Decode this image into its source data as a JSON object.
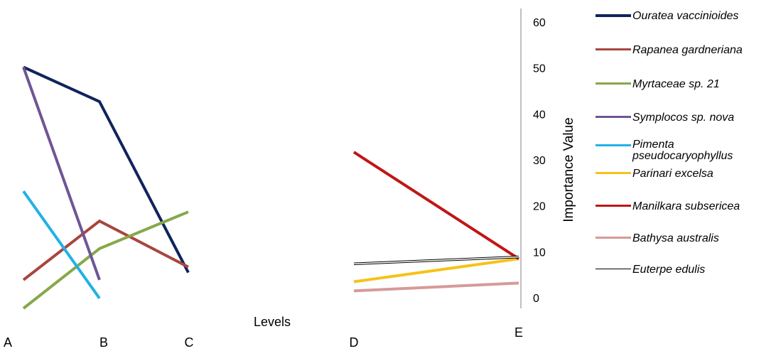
{
  "chart_data": {
    "type": "line",
    "title": "",
    "xlabel": "Levels",
    "ylabel": "Importance  Value",
    "ylim": [
      0,
      60
    ],
    "yticks": [
      0,
      10,
      20,
      30,
      40,
      50,
      60
    ],
    "categories": [
      "A",
      "B",
      "C",
      "D",
      "E"
    ],
    "series": [
      {
        "name": "Ouratea vaccinioides",
        "color": "#10245c",
        "points": [
          [
            "A",
            52.5
          ],
          [
            "B",
            45
          ],
          [
            "C",
            7.8
          ]
        ]
      },
      {
        "name": "Rapanea gardneriana",
        "color": "#a8463f",
        "points": [
          [
            "A",
            6.2
          ],
          [
            "B",
            19
          ],
          [
            "C",
            9
          ]
        ]
      },
      {
        "name": "Myrtaceae sp. 21",
        "color": "#86a84a",
        "points": [
          [
            "A",
            0
          ],
          [
            "B",
            13
          ],
          [
            "C",
            21
          ]
        ]
      },
      {
        "name": "Symplocos sp. nova",
        "color": "#6f5596",
        "points": [
          [
            "A",
            52.5
          ],
          [
            "B",
            6.2
          ]
        ]
      },
      {
        "name": "Pimenta pseudocaryophyllus",
        "color": "#21b1e6",
        "points": [
          [
            "A",
            25.5
          ],
          [
            "B",
            2.2
          ]
        ]
      },
      {
        "name": "Parinari excelsa",
        "color": "#f6c21a",
        "points": [
          [
            "D",
            5.8
          ],
          [
            "E",
            10.8
          ]
        ]
      },
      {
        "name": "Manilkara subsericea",
        "color": "#bf1616",
        "points": [
          [
            "D",
            34
          ],
          [
            "E",
            10.8
          ]
        ]
      },
      {
        "name": "Bathysa australis",
        "color": "#d69a98",
        "points": [
          [
            "D",
            3.8
          ],
          [
            "E",
            5.5
          ]
        ]
      },
      {
        "name": "Euterpe edulis",
        "color": "#000000",
        "points": [
          [
            "D",
            9.7
          ],
          [
            "E",
            11.2
          ]
        ]
      }
    ]
  },
  "legend": {
    "items": [
      {
        "label": "Ouratea vaccinioides",
        "color": "#10245c"
      },
      {
        "label": "Rapanea gardneriana",
        "color": "#a8463f"
      },
      {
        "label": "Myrtaceae sp. 21",
        "color": "#86a84a"
      },
      {
        "label": "Symplocos sp. nova",
        "color": "#6f5596"
      },
      {
        "label": "Pimenta pseudocaryophyllus",
        "color": "#21b1e6"
      },
      {
        "label": "Parinari excelsa",
        "color": "#f6c21a"
      },
      {
        "label": "Manilkara subsericea",
        "color": "#bf1616"
      },
      {
        "label": "Bathysa australis",
        "color": "#d69a98"
      },
      {
        "label": "Euterpe edulis",
        "color": "#000000"
      }
    ]
  }
}
